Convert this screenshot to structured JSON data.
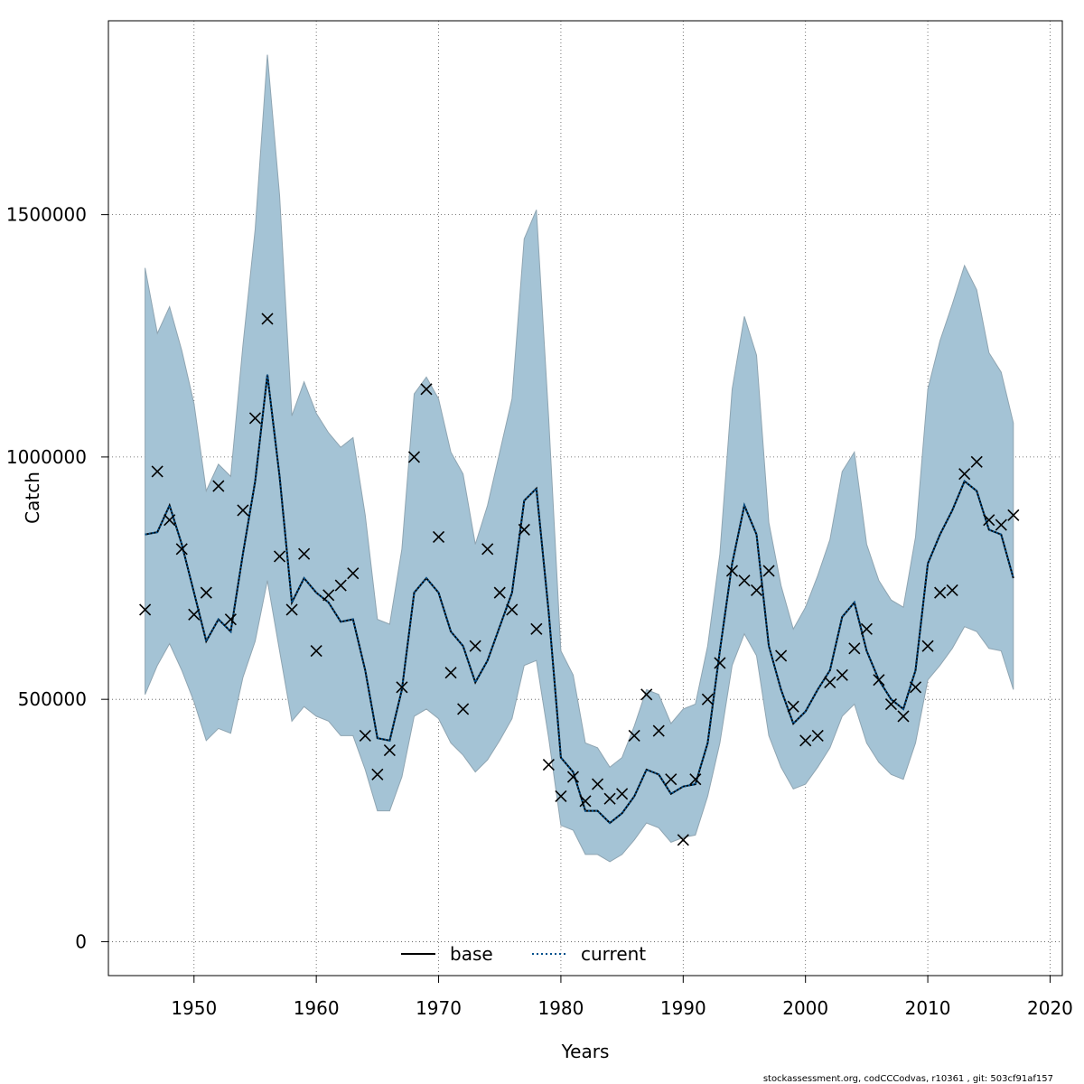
{
  "chart_data": {
    "type": "line",
    "xlabel": "Years",
    "ylabel": "Catch",
    "xlim": [
      1943,
      2021
    ],
    "ylim": [
      -70000,
      1900000
    ],
    "x_ticks": [
      1950,
      1960,
      1970,
      1980,
      1990,
      2000,
      2010,
      2020
    ],
    "y_ticks": [
      0,
      500000,
      1000000,
      1500000
    ],
    "x_tick_labels": [
      "1950",
      "1960",
      "1970",
      "1980",
      "1990",
      "2000",
      "2010",
      "2020"
    ],
    "y_tick_labels": [
      "0",
      "500000",
      "1000000",
      "1500000"
    ],
    "grid": true,
    "legend": {
      "position": "bottom-center",
      "entries": [
        {
          "label": "base",
          "style": "solid",
          "color": "#000000"
        },
        {
          "label": "current",
          "style": "dotted",
          "color": "#00508c"
        }
      ]
    },
    "colors": {
      "band": "#a4c3d5",
      "band_edge": "#8fa5b2",
      "current_line": "#00508c",
      "base_line": "#000000",
      "observed_marker": "#000000"
    },
    "x": [
      1946,
      1947,
      1948,
      1949,
      1950,
      1951,
      1952,
      1953,
      1954,
      1955,
      1956,
      1957,
      1958,
      1959,
      1960,
      1961,
      1962,
      1963,
      1964,
      1965,
      1966,
      1967,
      1968,
      1969,
      1970,
      1971,
      1972,
      1973,
      1974,
      1975,
      1976,
      1977,
      1978,
      1979,
      1980,
      1981,
      1982,
      1983,
      1984,
      1985,
      1986,
      1987,
      1988,
      1989,
      1990,
      1991,
      1992,
      1993,
      1994,
      1995,
      1996,
      1997,
      1998,
      1999,
      2000,
      2001,
      2002,
      2003,
      2004,
      2005,
      2006,
      2007,
      2008,
      2009,
      2010,
      2011,
      2012,
      2013,
      2014,
      2015,
      2016,
      2017
    ],
    "series": [
      {
        "name": "current",
        "role": "estimate",
        "values": [
          840000,
          845000,
          900000,
          820000,
          720000,
          620000,
          665000,
          640000,
          800000,
          950000,
          1170000,
          960000,
          700000,
          750000,
          720000,
          700000,
          660000,
          665000,
          560000,
          420000,
          415000,
          520000,
          720000,
          750000,
          720000,
          640000,
          610000,
          535000,
          580000,
          650000,
          720000,
          910000,
          935000,
          680000,
          380000,
          350000,
          270000,
          270000,
          245000,
          265000,
          300000,
          355000,
          345000,
          305000,
          320000,
          325000,
          410000,
          600000,
          780000,
          900000,
          840000,
          610000,
          520000,
          450000,
          475000,
          520000,
          560000,
          670000,
          700000,
          600000,
          540000,
          500000,
          480000,
          560000,
          780000,
          840000,
          890000,
          950000,
          930000,
          850000,
          840000,
          750000
        ]
      },
      {
        "name": "upper",
        "role": "confidence-upper",
        "values": [
          1390000,
          1255000,
          1310000,
          1220000,
          1110000,
          930000,
          985000,
          960000,
          1230000,
          1470000,
          1830000,
          1540000,
          1085000,
          1155000,
          1090000,
          1050000,
          1020000,
          1040000,
          880000,
          665000,
          655000,
          810000,
          1130000,
          1165000,
          1120000,
          1010000,
          965000,
          820000,
          900000,
          1010000,
          1120000,
          1450000,
          1510000,
          1080000,
          600000,
          550000,
          410000,
          400000,
          360000,
          380000,
          445000,
          520000,
          510000,
          450000,
          480000,
          490000,
          610000,
          800000,
          1140000,
          1290000,
          1210000,
          865000,
          735000,
          645000,
          690000,
          755000,
          830000,
          970000,
          1010000,
          820000,
          745000,
          705000,
          690000,
          835000,
          1140000,
          1240000,
          1315000,
          1395000,
          1345000,
          1215000,
          1175000,
          1070000
        ]
      },
      {
        "name": "lower",
        "role": "confidence-lower",
        "values": [
          510000,
          570000,
          615000,
          560000,
          495000,
          415000,
          440000,
          430000,
          545000,
          620000,
          745000,
          600000,
          455000,
          485000,
          465000,
          455000,
          425000,
          425000,
          355000,
          270000,
          270000,
          340000,
          465000,
          480000,
          460000,
          410000,
          385000,
          350000,
          375000,
          415000,
          460000,
          570000,
          580000,
          420000,
          240000,
          230000,
          180000,
          180000,
          165000,
          180000,
          210000,
          245000,
          235000,
          205000,
          215000,
          220000,
          300000,
          410000,
          570000,
          635000,
          590000,
          425000,
          360000,
          315000,
          325000,
          360000,
          400000,
          465000,
          490000,
          410000,
          370000,
          345000,
          335000,
          410000,
          540000,
          570000,
          605000,
          650000,
          640000,
          605000,
          600000,
          520000
        ]
      },
      {
        "name": "observed",
        "role": "observed-catch",
        "values": [
          685000,
          970000,
          870000,
          810000,
          675000,
          720000,
          940000,
          665000,
          890000,
          1080000,
          1285000,
          795000,
          685000,
          800000,
          600000,
          715000,
          735000,
          760000,
          425000,
          345000,
          395000,
          525000,
          1000000,
          1140000,
          835000,
          555000,
          480000,
          610000,
          810000,
          720000,
          685000,
          850000,
          645000,
          365000,
          300000,
          340000,
          290000,
          325000,
          295000,
          305000,
          425000,
          510000,
          435000,
          335000,
          210000,
          335000,
          500000,
          575000,
          765000,
          745000,
          725000,
          765000,
          590000,
          485000,
          415000,
          425000,
          535000,
          550000,
          605000,
          645000,
          540000,
          490000,
          465000,
          525000,
          610000,
          720000,
          725000,
          965000,
          990000,
          870000,
          860000,
          880000
        ]
      }
    ]
  },
  "footer": "stockassessment.org, codCCCodvas, r10361 , git: 503cf91af157"
}
